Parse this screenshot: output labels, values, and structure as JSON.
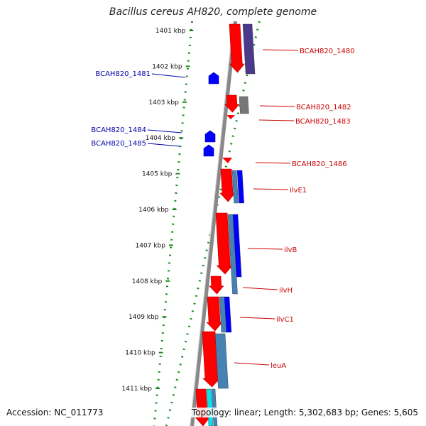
{
  "title": "Bacillus cereus AH820, complete genome",
  "footer": {
    "accession": "Accession: NC_011773",
    "summary": "Topology: linear; Length: 5,302,683 bp; Genes: 5,605"
  },
  "ticks": [
    "1401 kbp",
    "1402 kbp",
    "1403 kbp",
    "1404 kbp",
    "1405 kbp",
    "1406 kbp",
    "1407 kbp",
    "1408 kbp",
    "1409 kbp",
    "1410 kbp",
    "1411 kbp"
  ],
  "genes_right": [
    "BCAH820_1480",
    "BCAH820_1482",
    "BCAH820_1483",
    "BCAH820_1486",
    "ilvE1",
    "ilvB",
    "ilvH",
    "ilvC1",
    "leuA"
  ],
  "genes_left": [
    "BCAH820_1481",
    "BCAH820_1484",
    "BCAH820_1485"
  ],
  "colors": {
    "gene_forward": "#ff0000",
    "gene_reverse": "#0000ff",
    "label_right": "#cc0000",
    "label_left": "#0000aa",
    "backbone": "#888888",
    "dots": "#228b22",
    "feature_purple": "#4b3a8c",
    "feature_gray": "#777777",
    "feature_steel": "#4682b4",
    "feature_cyan": "#00e5ee"
  }
}
